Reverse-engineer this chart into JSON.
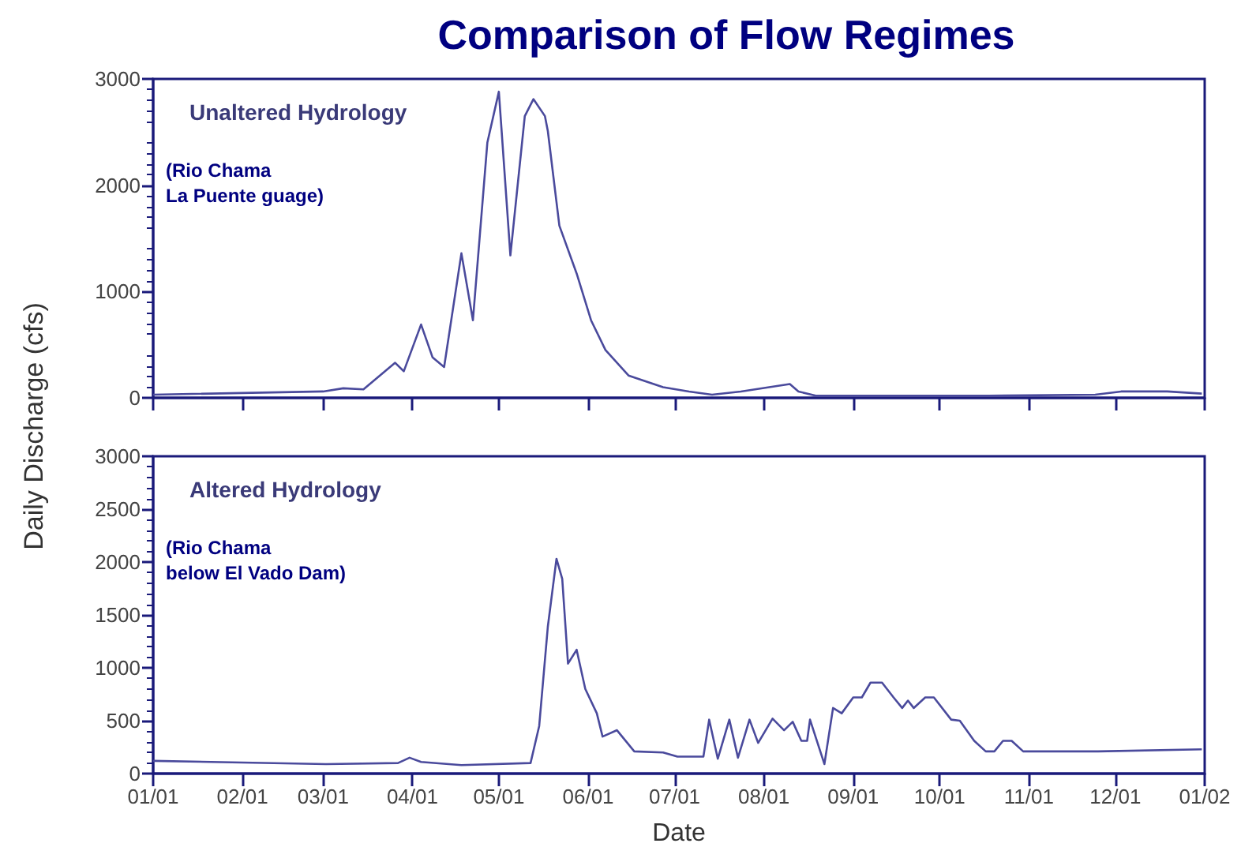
{
  "chart_data": [
    {
      "type": "line",
      "title": "Comparison of Flow Regimes",
      "ylabel": "Daily Discharge (cfs)",
      "annotations": [
        "Unaltered Hydrology",
        "(Rio Chama\nLa Puente guage)"
      ],
      "x": [
        "2001-01-01",
        "2001-03-01",
        "2001-03-08",
        "2001-03-15",
        "2001-03-26",
        "2001-03-29",
        "2001-04-04",
        "2001-04-08",
        "2001-04-12",
        "2001-04-18",
        "2001-04-22",
        "2001-04-27",
        "2001-05-01",
        "2001-05-05",
        "2001-05-10",
        "2001-05-13",
        "2001-05-17",
        "2001-05-18",
        "2001-05-22",
        "2001-05-28",
        "2001-06-02",
        "2001-06-07",
        "2001-06-15",
        "2001-06-27",
        "2001-07-06",
        "2001-07-14",
        "2001-07-24",
        "2001-08-10",
        "2001-08-13",
        "2001-08-19",
        "2001-09-03",
        "2001-10-18",
        "2001-11-24",
        "2001-12-03",
        "2001-12-19",
        "2001-12-31"
      ],
      "series": [
        {
          "color": "#4a4a9c",
          "values": [
            30,
            60,
            90,
            80,
            330,
            250,
            690,
            380,
            290,
            1360,
            730,
            2400,
            2880,
            1340,
            2650,
            2810,
            2650,
            2510,
            1620,
            1170,
            730,
            450,
            210,
            100,
            60,
            30,
            60,
            130,
            60,
            20,
            20,
            20,
            30,
            60,
            60,
            40
          ]
        }
      ],
      "xlim": [
        "2001-01-01",
        "2002-01-01"
      ],
      "xticks": [
        {
          "value": "2001-01-01",
          "label": null
        },
        {
          "value": "2001-02-01",
          "label": null
        },
        {
          "value": "2001-03-01",
          "label": null
        },
        {
          "value": "2001-04-01",
          "label": null
        },
        {
          "value": "2001-05-01",
          "label": null
        },
        {
          "value": "2001-06-01",
          "label": null
        },
        {
          "value": "2001-07-01",
          "label": null
        },
        {
          "value": "2001-08-01",
          "label": null
        },
        {
          "value": "2001-09-01",
          "label": null
        },
        {
          "value": "2001-10-01",
          "label": null
        },
        {
          "value": "2001-11-01",
          "label": null
        },
        {
          "value": "2001-12-01",
          "label": null
        },
        {
          "value": "2002-01-01",
          "label": null
        }
      ],
      "ylim": [
        0,
        3000
      ],
      "yticks": [
        0,
        1000,
        2000,
        3000
      ],
      "tick_labels": "y"
    },
    {
      "type": "line",
      "xlabel": "Date",
      "annotations": [
        "Altered Hydrology",
        "(Rio Chama\nbelow El Vado Dam)"
      ],
      "x": [
        "2001-01-01",
        "2001-03-02",
        "2001-03-27",
        "2001-03-31",
        "2001-04-04",
        "2001-04-18",
        "2001-05-12",
        "2001-05-15",
        "2001-05-18",
        "2001-05-21",
        "2001-05-23",
        "2001-05-25",
        "2001-05-28",
        "2001-05-31",
        "2001-06-04",
        "2001-06-06",
        "2001-06-11",
        "2001-06-17",
        "2001-06-27",
        "2001-07-02",
        "2001-07-07",
        "2001-07-11",
        "2001-07-13",
        "2001-07-16",
        "2001-07-20",
        "2001-07-23",
        "2001-07-27",
        "2001-07-30",
        "2001-08-04",
        "2001-08-08",
        "2001-08-11",
        "2001-08-14",
        "2001-08-16",
        "2001-08-17",
        "2001-08-22",
        "2001-08-25",
        "2001-08-28",
        "2001-09-01",
        "2001-09-04",
        "2001-09-07",
        "2001-09-11",
        "2001-09-15",
        "2001-09-18",
        "2001-09-20",
        "2001-09-22",
        "2001-09-26",
        "2001-09-29",
        "2001-10-05",
        "2001-10-08",
        "2001-10-13",
        "2001-10-17",
        "2001-10-20",
        "2001-10-23",
        "2001-10-26",
        "2001-10-30",
        "2001-11-25",
        "2001-12-31"
      ],
      "series": [
        {
          "color": "#4a4a9c",
          "values": [
            120,
            90,
            100,
            150,
            110,
            80,
            100,
            450,
            1390,
            2030,
            1840,
            1040,
            1170,
            800,
            570,
            350,
            410,
            210,
            200,
            160,
            160,
            160,
            510,
            140,
            510,
            150,
            510,
            290,
            520,
            410,
            490,
            310,
            310,
            510,
            90,
            620,
            570,
            720,
            720,
            860,
            860,
            720,
            620,
            690,
            620,
            720,
            720,
            510,
            500,
            310,
            210,
            210,
            310,
            310,
            210,
            210,
            230
          ]
        }
      ],
      "xlim": [
        "2001-01-01",
        "2002-01-01"
      ],
      "xticks": [
        {
          "value": "2001-01-01",
          "label": "01/01"
        },
        {
          "value": "2001-02-01",
          "label": "02/01"
        },
        {
          "value": "2001-03-01",
          "label": "03/01"
        },
        {
          "value": "2001-04-01",
          "label": "04/01"
        },
        {
          "value": "2001-05-01",
          "label": "05/01"
        },
        {
          "value": "2001-06-01",
          "label": "06/01"
        },
        {
          "value": "2001-07-01",
          "label": "07/01"
        },
        {
          "value": "2001-08-01",
          "label": "08/01"
        },
        {
          "value": "2001-09-01",
          "label": "09/01"
        },
        {
          "value": "2001-10-01",
          "label": "10/01"
        },
        {
          "value": "2001-11-01",
          "label": "11/01"
        },
        {
          "value": "2001-12-01",
          "label": "12/01"
        },
        {
          "value": "2002-01-01",
          "label": "01/02"
        }
      ],
      "ylim": [
        0,
        3000
      ],
      "yticks": [
        0,
        500,
        1000,
        1500,
        2000,
        2500,
        3000
      ]
    }
  ]
}
